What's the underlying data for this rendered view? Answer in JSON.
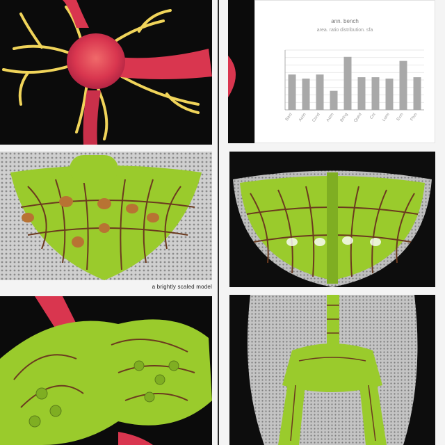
{
  "panels": {
    "top_left": {
      "subject": "neuron-illustration"
    },
    "middle_left": {
      "subject": "lung-mesh-illustration",
      "caption": "a brightly scaled model"
    },
    "bottom_left": {
      "subject": "kidney-structure-illustration"
    },
    "middle_right": {
      "subject": "ribcage-mesh-illustration"
    },
    "bottom_right": {
      "subject": "pelvis-spine-mesh-illustration"
    }
  },
  "colors": {
    "neuron_body": "#e0405a",
    "dendrite": "#f0d45a",
    "organ_green": "#9acb2c",
    "vein_brown": "#6b3a1f",
    "mesh_gray": "#b8b8b8",
    "bar_gray": "#a9a9a9"
  },
  "chart_data": {
    "type": "bar",
    "title": "ann. bench",
    "subtitle": "area. ratio distribution. sfa",
    "categories": [
      "Bact",
      "Actin",
      "Cond",
      "Actm",
      "Bring",
      "Qued",
      "Cnt",
      "Lumi",
      "Exm",
      "Phm"
    ],
    "values": [
      1.3,
      1.15,
      1.3,
      0.7,
      1.95,
      1.2,
      1.2,
      1.15,
      1.8,
      1.2
    ],
    "ylim": [
      0,
      2.2
    ],
    "grid": true
  }
}
